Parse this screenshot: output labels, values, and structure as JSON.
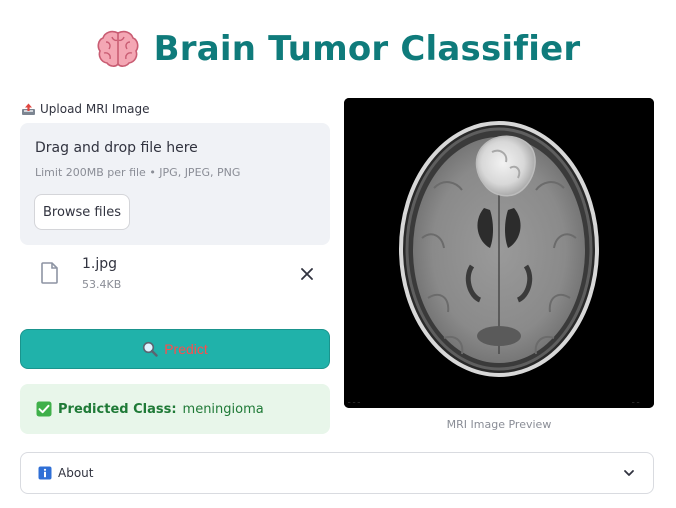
{
  "app": {
    "title": "Brain Tumor Classifier",
    "title_icon": "brain-icon",
    "accent_color": "#0f7b7b"
  },
  "uploader": {
    "label": "Upload MRI Image",
    "label_icon": "outbox-tray-icon",
    "dropzone_title": "Drag and drop file here",
    "dropzone_limit": "Limit 200MB per file • JPG, JPEG, PNG",
    "browse_label": "Browse files"
  },
  "file": {
    "name": "1.jpg",
    "size": "53.4KB",
    "icon": "file-icon",
    "remove_icon": "close-icon"
  },
  "predict": {
    "label": "Predict",
    "icon": "magnifier-icon",
    "button_color": "#20b2aa",
    "text_color": "#ff4b4b"
  },
  "result": {
    "label": "Predicted Class:",
    "value": "meningioma",
    "icon": "check-mark-icon",
    "background": "#e8f6ea"
  },
  "preview": {
    "caption": "MRI Image Preview"
  },
  "about": {
    "label": "About",
    "icon": "info-icon",
    "chevron": "chevron-down-icon"
  }
}
